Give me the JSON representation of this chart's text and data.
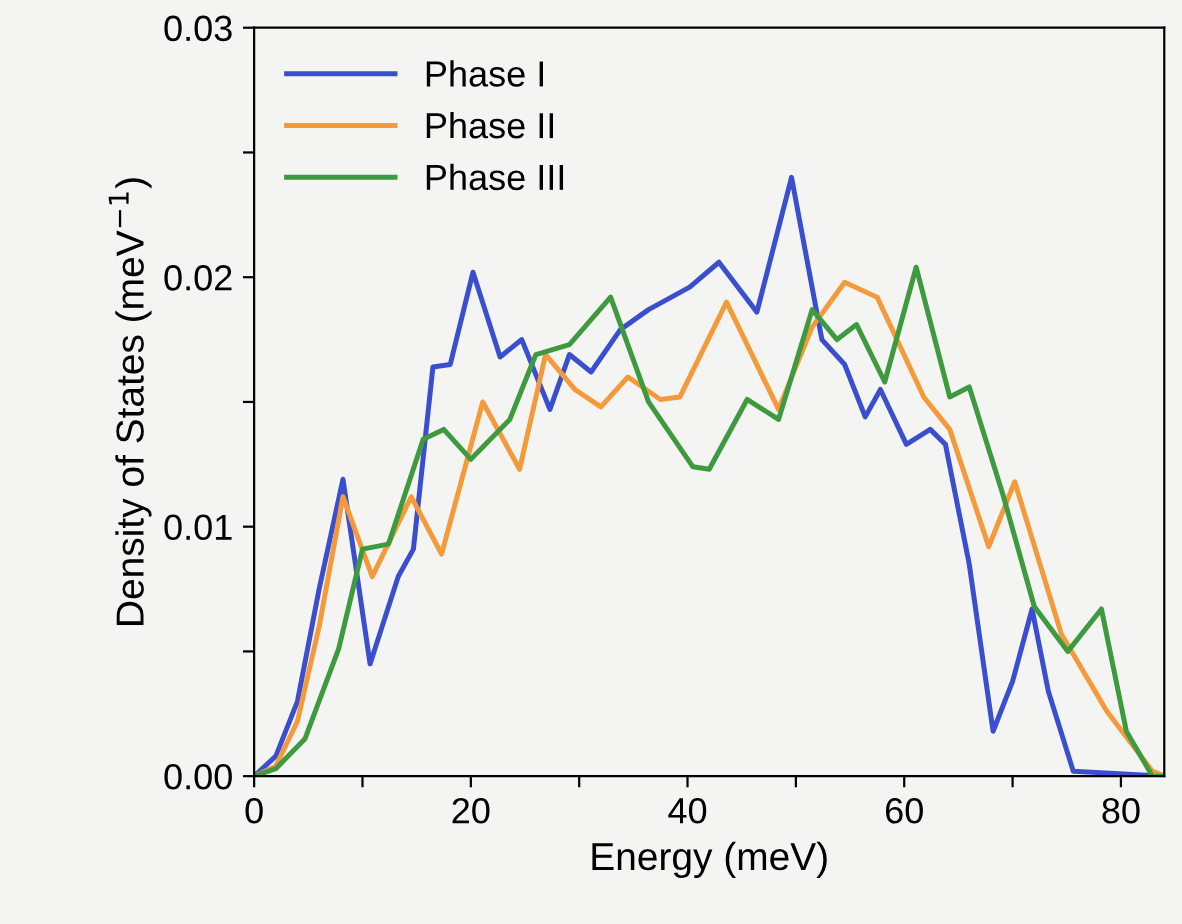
{
  "chart_data": {
    "type": "line",
    "xlabel": "Energy (meV)",
    "ylabel": "Density of States (meV$^{−1}$)",
    "xlim": [
      0,
      84
    ],
    "ylim": [
      0,
      0.03
    ],
    "xticks": [
      0,
      {
        "value": 10,
        "label": null
      },
      20,
      {
        "value": 30,
        "label": null
      },
      40,
      {
        "value": 50,
        "label": null
      },
      60,
      {
        "value": 70,
        "label": null
      },
      80
    ],
    "yticks": [
      {
        "value": 0,
        "label": "0.00"
      },
      {
        "value": 0.005,
        "label": null
      },
      {
        "value": 0.01,
        "label": "0.01"
      },
      {
        "value": 0.015,
        "label": null
      },
      {
        "value": 0.02,
        "label": "0.02"
      },
      {
        "value": 0.025,
        "label": null
      },
      {
        "value": 0.03,
        "label": "0.03"
      }
    ],
    "legend": "top left",
    "grid": false,
    "marker": "none",
    "line_style": "solid",
    "series": [
      {
        "name": "Phase I",
        "color": "#3a4fd0",
        "x": [
          0,
          2,
          4,
          6,
          8.2,
          10.7,
          13.3,
          14.7,
          16.5,
          18.1,
          20.2,
          22.7,
          24.7,
          27.3,
          29.1,
          31.1,
          33.8,
          36.4,
          40.2,
          42.9,
          46.4,
          49.6,
          52.4,
          54.5,
          56.4,
          57.8,
          60.2,
          62.4,
          63.8,
          66,
          68.2,
          70,
          71.8,
          73.3,
          75.6,
          84
        ],
        "values": [
          0,
          0.0008,
          0.003,
          0.0075,
          0.0119,
          0.0045,
          0.008,
          0.0091,
          0.0164,
          0.0165,
          0.0202,
          0.0168,
          0.0175,
          0.0147,
          0.0169,
          0.0162,
          0.0179,
          0.0187,
          0.0196,
          0.0206,
          0.0186,
          0.024,
          0.0175,
          0.0165,
          0.0144,
          0.0155,
          0.0133,
          0.0139,
          0.0133,
          0.0085,
          0.0018,
          0.0038,
          0.0067,
          0.0034,
          0.0002,
          0
        ]
      },
      {
        "name": "Phase II",
        "color": "#f59a3a",
        "x": [
          0,
          2,
          4,
          6,
          8.2,
          10.9,
          14.5,
          17.3,
          21.1,
          24.5,
          26.9,
          29.6,
          32,
          34.5,
          37.5,
          39.3,
          43.6,
          48.4,
          51.5,
          54.5,
          57.5,
          61.8,
          64.2,
          67.8,
          70.2,
          74.5,
          78.7,
          82.9,
          84
        ],
        "values": [
          0,
          0.0004,
          0.0022,
          0.006,
          0.0112,
          0.008,
          0.0112,
          0.0089,
          0.015,
          0.0123,
          0.0169,
          0.0155,
          0.0148,
          0.016,
          0.0151,
          0.0152,
          0.019,
          0.0147,
          0.018,
          0.0198,
          0.0192,
          0.0152,
          0.0139,
          0.0092,
          0.0118,
          0.0057,
          0.0026,
          0.0002,
          0
        ]
      },
      {
        "name": "Phase III",
        "color": "#3e9a3e",
        "x": [
          0,
          2,
          4.7,
          7.8,
          10,
          12.4,
          15.6,
          17.5,
          20,
          23.6,
          26,
          29.1,
          32.9,
          36.4,
          40.5,
          42,
          45.5,
          48.4,
          51.5,
          53.8,
          55.6,
          58.2,
          61.1,
          64.2,
          66,
          69.1,
          72,
          75.1,
          78.2,
          80.5,
          82.9,
          84
        ],
        "values": [
          0,
          0.0003,
          0.0015,
          0.0051,
          0.0091,
          0.0093,
          0.0135,
          0.0139,
          0.0127,
          0.0143,
          0.0169,
          0.0173,
          0.0192,
          0.015,
          0.0124,
          0.0123,
          0.0151,
          0.0143,
          0.0187,
          0.0175,
          0.0181,
          0.0158,
          0.0204,
          0.0152,
          0.0156,
          0.0113,
          0.0068,
          0.005,
          0.0067,
          0.0018,
          0,
          0
        ]
      }
    ]
  }
}
